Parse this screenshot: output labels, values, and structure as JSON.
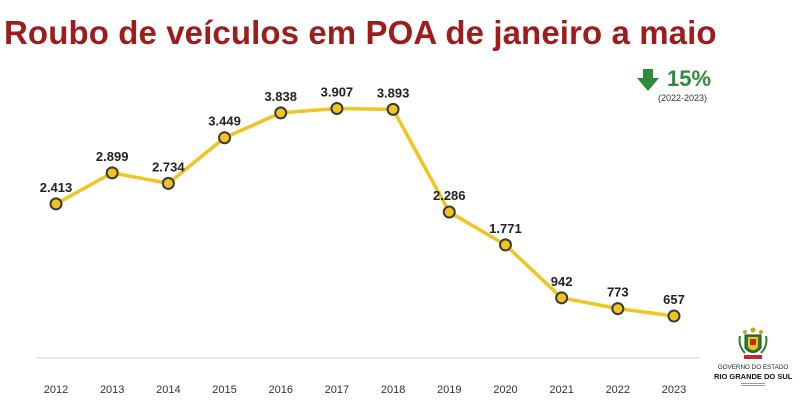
{
  "title": "Roubo de veículos em POA de janeiro a maio",
  "change": {
    "value": "15%",
    "direction": "down",
    "period": "(2022-2023)",
    "color": "#2e8b3a"
  },
  "logo": {
    "line1": "GOVERNO DO ESTADO",
    "line2": "RIO GRANDE DO SUL"
  },
  "chart_data": {
    "type": "line",
    "title": "Roubo de veículos em POA de janeiro a maio",
    "xlabel": "",
    "ylabel": "",
    "categories": [
      "2012",
      "2013",
      "2014",
      "2015",
      "2016",
      "2017",
      "2018",
      "2019",
      "2020",
      "2021",
      "2022",
      "2023"
    ],
    "values": [
      2413,
      2899,
      2734,
      3449,
      3838,
      3907,
      3893,
      2286,
      1771,
      942,
      773,
      657
    ],
    "data_labels": [
      "2.413",
      "2.899",
      "2.734",
      "3.449",
      "3.838",
      "3.907",
      "3.893",
      "2.286",
      "1.771",
      "942",
      "773",
      "657"
    ],
    "ylim": [
      0,
      4400
    ],
    "grid": false,
    "legend": "none",
    "line_color": "#f2c41f",
    "marker_fill": "#f2c41f",
    "marker_stroke": "#3a3a3a"
  }
}
